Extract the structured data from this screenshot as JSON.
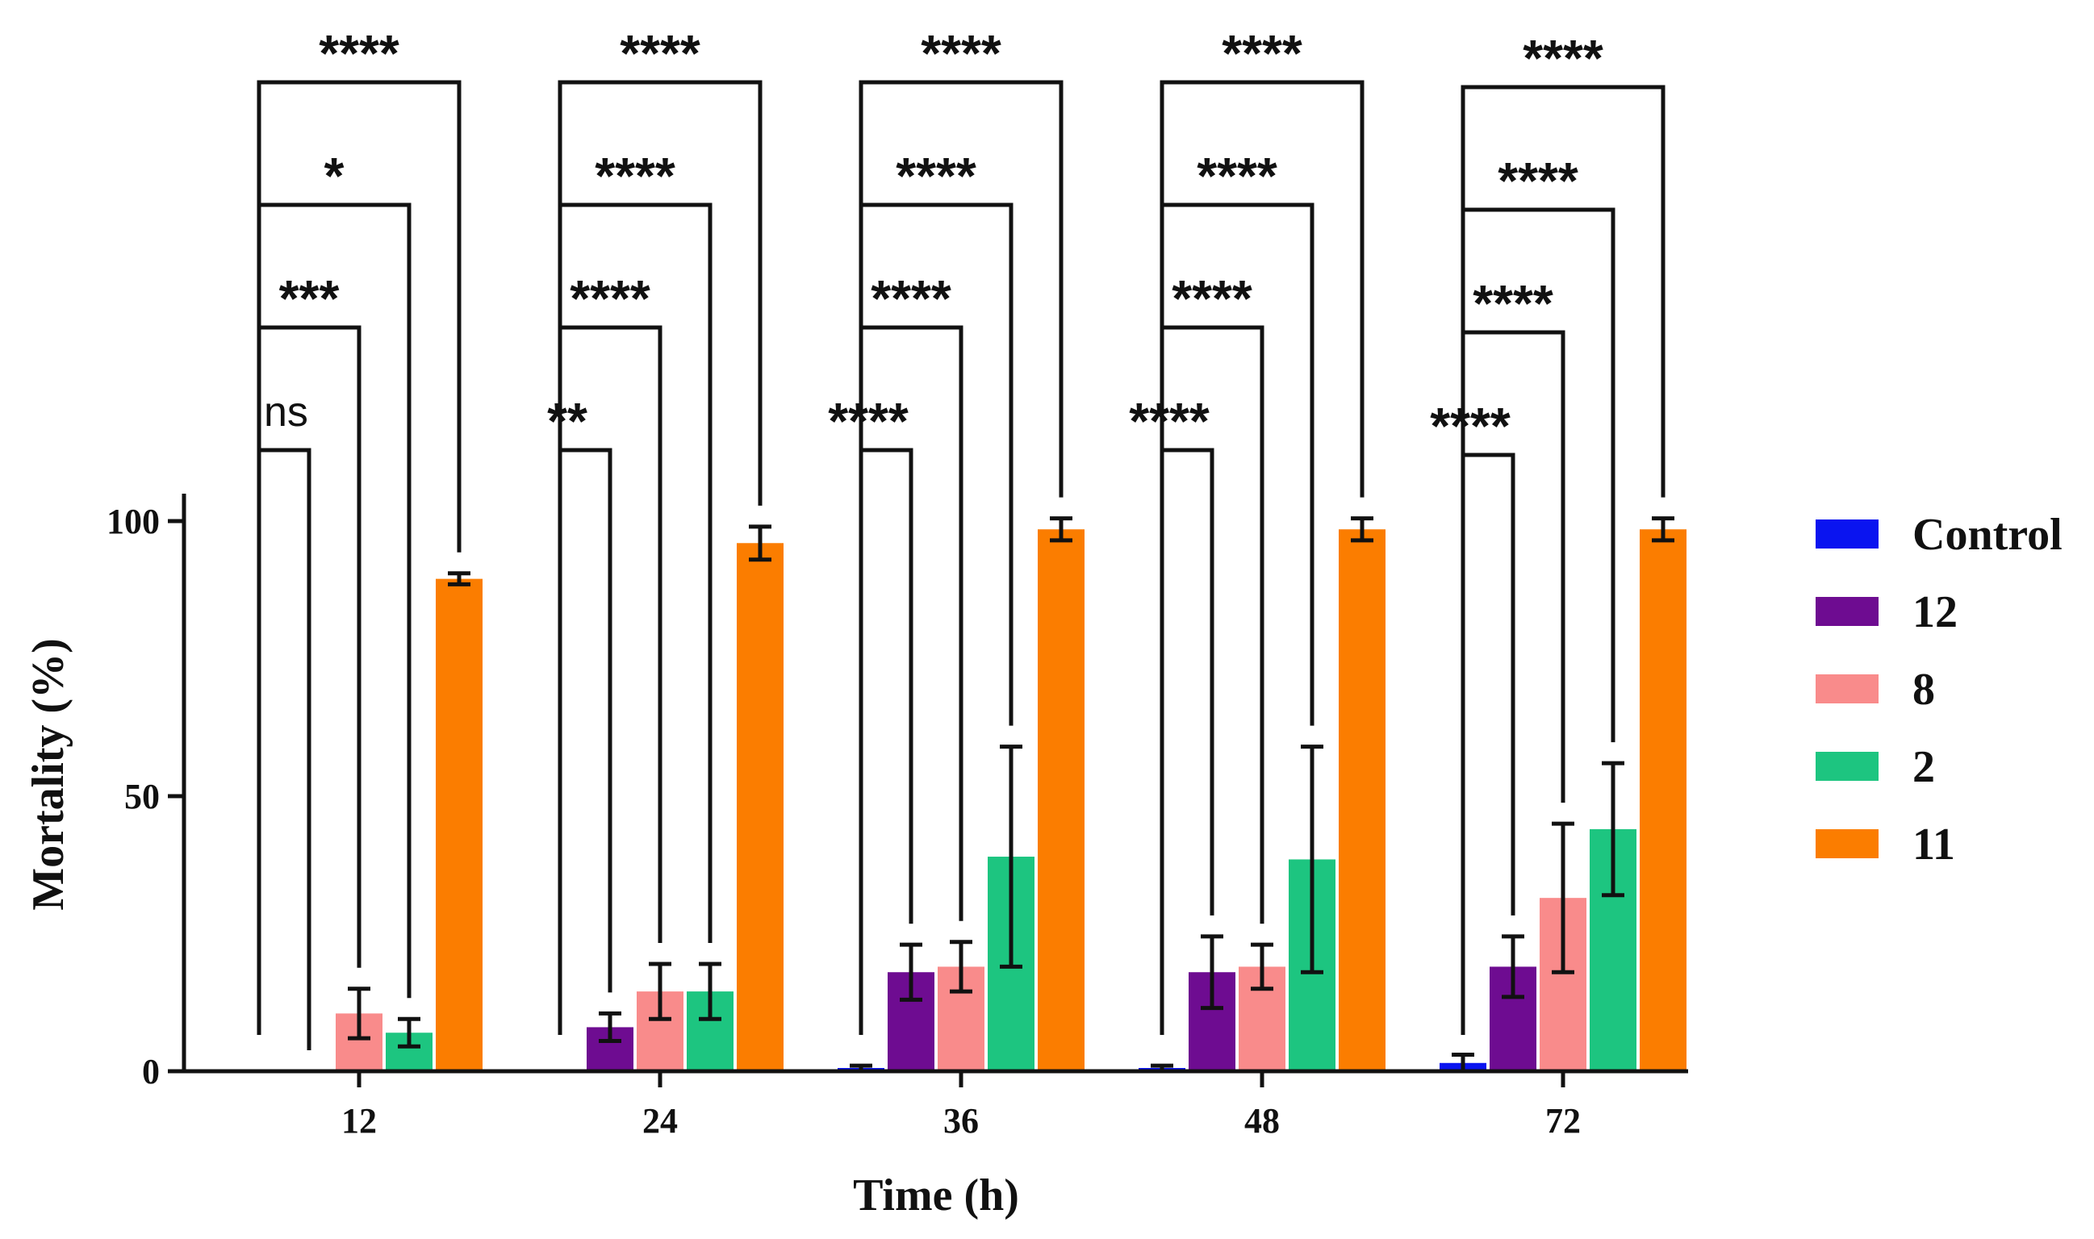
{
  "chart_data": {
    "type": "bar",
    "title": "",
    "xlabel": "Time (h)",
    "ylabel": "Mortality (%)",
    "ylim": [
      0,
      100
    ],
    "yticks": [
      "0",
      "50",
      "100"
    ],
    "categories": [
      "12",
      "24",
      "36",
      "48",
      "72"
    ],
    "series": [
      {
        "name": "Control",
        "color": "#0a14f0",
        "values": [
          0,
          0,
          0.5,
          0.5,
          1.5
        ],
        "errors": [
          0,
          0,
          0.5,
          0.5,
          1.5
        ]
      },
      {
        "name": "12",
        "color": "#6e0c91",
        "values": [
          0,
          8,
          18,
          18,
          19
        ],
        "errors": [
          0,
          2.5,
          5,
          6.5,
          5.5
        ]
      },
      {
        "name": "8",
        "color": "#f98b8b",
        "values": [
          10.5,
          14.5,
          19,
          19,
          31.5
        ],
        "errors": [
          4.5,
          5,
          4.5,
          4,
          13.5
        ]
      },
      {
        "name": "2",
        "color": "#1dc580",
        "values": [
          7,
          14.5,
          39,
          38.5,
          44
        ],
        "errors": [
          2.5,
          5,
          20,
          20.5,
          12
        ]
      },
      {
        "name": "11",
        "color": "#fb7d00",
        "values": [
          89.5,
          96,
          98.5,
          98.5,
          98.5
        ],
        "errors": [
          1,
          3,
          2,
          2,
          2
        ]
      }
    ],
    "legend_position": "right",
    "significance": [
      [
        "ns",
        "***",
        "*",
        "****"
      ],
      [
        "**",
        "****",
        "****",
        "****"
      ],
      [
        "****",
        "****",
        "****",
        "****"
      ],
      [
        "****",
        "****",
        "****",
        "****"
      ],
      [
        "****",
        "****",
        "****",
        "****"
      ]
    ]
  }
}
